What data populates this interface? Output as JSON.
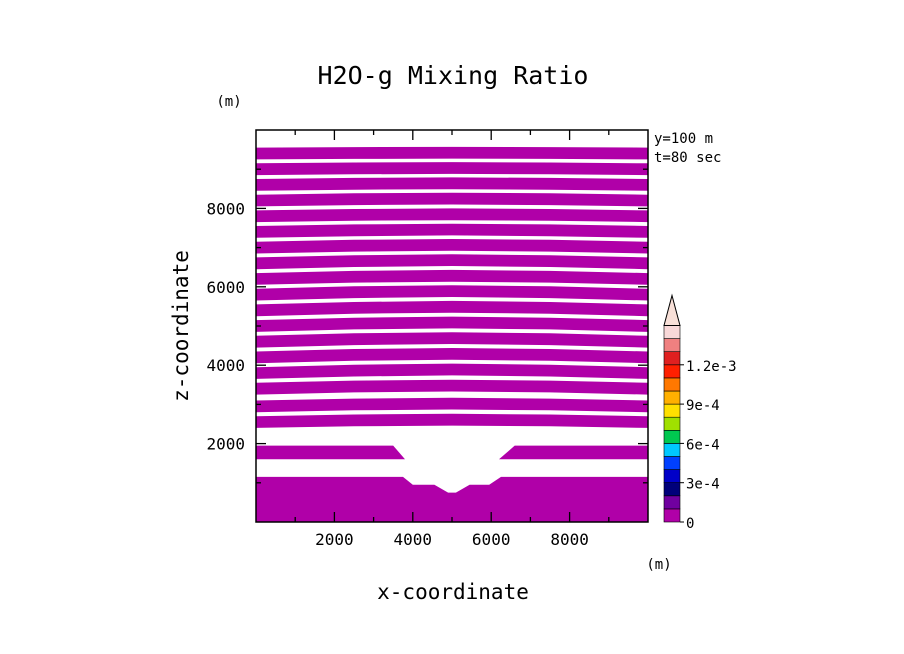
{
  "chart_data": {
    "type": "contour-fill",
    "title": "H2O-g Mixing Ratio",
    "xlabel": "x-coordinate",
    "ylabel": "z-coordinate",
    "x_unit": "(m)",
    "y_unit": "(m)",
    "info_lines": [
      "y=100 m",
      "t=80 sec"
    ],
    "xlim": [
      0,
      10000
    ],
    "ylim": [
      0,
      10000
    ],
    "x_ticks": [
      2000,
      4000,
      6000,
      8000
    ],
    "x_tick_labels": [
      "2000",
      "4000",
      "6000",
      "8000"
    ],
    "y_ticks": [
      2000,
      4000,
      6000,
      8000
    ],
    "y_tick_labels": [
      "2000",
      "4000",
      "6000",
      "8000"
    ],
    "fill_color": "#b000a8",
    "bands": [
      {
        "z0": 2400,
        "z1": 2700,
        "bulge": 60
      },
      {
        "z0": 2800,
        "z1": 3100,
        "bulge": 70
      },
      {
        "z0": 3250,
        "z1": 3550,
        "bulge": 80
      },
      {
        "z0": 3650,
        "z1": 3950,
        "bulge": 90
      },
      {
        "z0": 4050,
        "z1": 4350,
        "bulge": 90
      },
      {
        "z0": 4450,
        "z1": 4750,
        "bulge": 90
      },
      {
        "z0": 4850,
        "z1": 5150,
        "bulge": 90
      },
      {
        "z0": 5250,
        "z1": 5550,
        "bulge": 90
      },
      {
        "z0": 5650,
        "z1": 5950,
        "bulge": 90
      },
      {
        "z0": 6050,
        "z1": 6350,
        "bulge": 80
      },
      {
        "z0": 6450,
        "z1": 6750,
        "bulge": 80
      },
      {
        "z0": 6850,
        "z1": 7150,
        "bulge": 70
      },
      {
        "z0": 7250,
        "z1": 7550,
        "bulge": 60
      },
      {
        "z0": 7650,
        "z1": 7950,
        "bulge": 50
      },
      {
        "z0": 8050,
        "z1": 8350,
        "bulge": 50
      },
      {
        "z0": 8450,
        "z1": 8750,
        "bulge": 40
      },
      {
        "z0": 8850,
        "z1": 9150,
        "bulge": 30
      },
      {
        "z0": 9250,
        "z1": 9550,
        "bulge": 20
      }
    ],
    "lower_band": {
      "z0": 1600,
      "z1": 1950,
      "inner_left": [
        [
          3500,
          1950
        ],
        [
          3800,
          1600
        ]
      ],
      "inner_right": [
        [
          6600,
          1950
        ],
        [
          6200,
          1600
        ]
      ]
    },
    "base_region": {
      "z0": 0,
      "z1": 1150,
      "notch": [
        [
          3750,
          1150
        ],
        [
          4000,
          950
        ],
        [
          4550,
          950
        ],
        [
          4900,
          750
        ],
        [
          5100,
          750
        ],
        [
          5450,
          950
        ],
        [
          5950,
          950
        ],
        [
          6250,
          1150
        ]
      ]
    },
    "colorbar": {
      "colors": [
        "#b000a8",
        "#7000a0",
        "#00007a",
        "#0000c8",
        "#0040ff",
        "#00c8ff",
        "#00c850",
        "#a0e000",
        "#ffe000",
        "#ffb000",
        "#ff7800",
        "#ff2000",
        "#e02020",
        "#f08080",
        "#f8d8d8"
      ],
      "extend_max_color": "#f8e0d8",
      "label_values": [
        "0",
        "3e-4",
        "6e-4",
        "9e-4",
        "1.2e-3"
      ],
      "label_steps": [
        0,
        3,
        6,
        9,
        12
      ]
    }
  }
}
